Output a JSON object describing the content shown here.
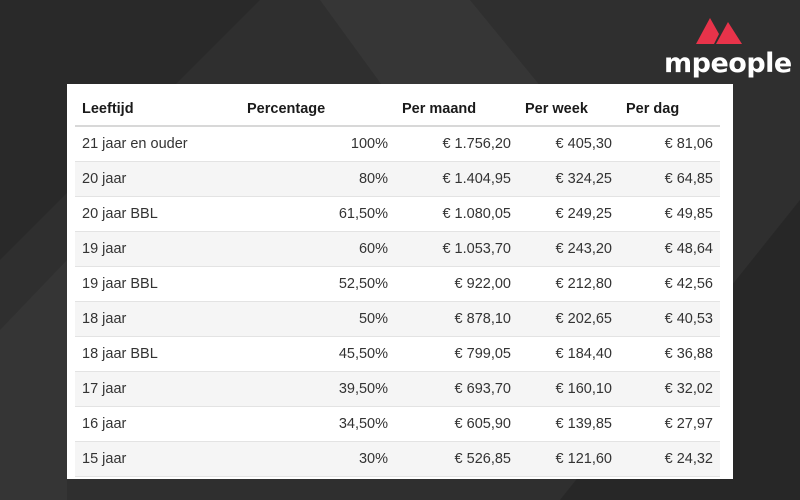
{
  "brand": {
    "name": "mpeople",
    "accent": "#e8334a"
  },
  "table": {
    "headers": [
      "Leeftijd",
      "Percentage",
      "Per maand",
      "Per week",
      "Per dag"
    ],
    "rows": [
      [
        "21 jaar en ouder",
        "100%",
        "€ 1.756,20",
        "€ 405,30",
        "€ 81,06"
      ],
      [
        "20 jaar",
        "80%",
        "€ 1.404,95",
        "€ 324,25",
        "€ 64,85"
      ],
      [
        "20 jaar BBL",
        "61,50%",
        "€ 1.080,05",
        "€ 249,25",
        "€ 49,85"
      ],
      [
        "19 jaar",
        "60%",
        "€ 1.053,70",
        "€ 243,20",
        "€ 48,64"
      ],
      [
        "19 jaar BBL",
        "52,50%",
        "€ 922,00",
        "€ 212,80",
        "€ 42,56"
      ],
      [
        "18 jaar",
        "50%",
        "€ 878,10",
        "€ 202,65",
        "€ 40,53"
      ],
      [
        "18 jaar BBL",
        "45,50%",
        "€ 799,05",
        "€ 184,40",
        "€ 36,88"
      ],
      [
        "17 jaar",
        "39,50%",
        "€ 693,70",
        "€ 160,10",
        "€ 32,02"
      ],
      [
        "16 jaar",
        "34,50%",
        "€ 605,90",
        "€ 139,85",
        "€ 27,97"
      ],
      [
        "15 jaar",
        "30%",
        "€ 526,85",
        "€ 121,60",
        "€ 24,32"
      ]
    ]
  }
}
